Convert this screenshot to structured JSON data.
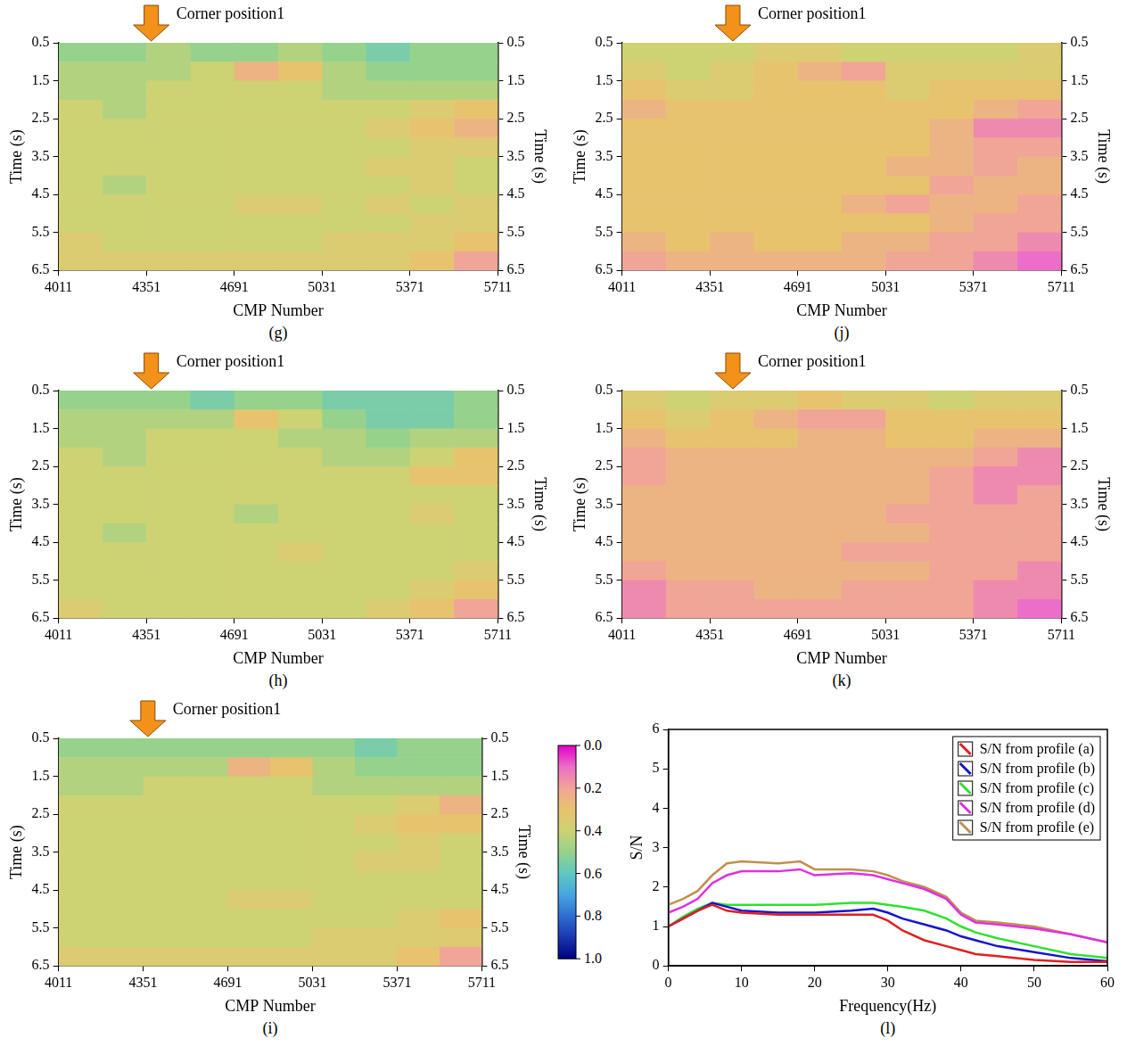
{
  "chart_data": [
    {
      "type": "heatmap",
      "label": "(g)",
      "annotation": {
        "text": "Corner position1",
        "x": 4370
      },
      "x_label": "CMP Number",
      "y_label": "Time (s)",
      "y2_label": "Time (s)",
      "xlim": [
        4011,
        5711
      ],
      "xticks": [
        4011,
        4351,
        4691,
        5031,
        5371,
        5711
      ],
      "ylim": [
        0.5,
        6.5
      ],
      "yticks": [
        0.5,
        1.5,
        2.5,
        3.5,
        4.5,
        5.5,
        6.5
      ],
      "y2lim": [
        0.5,
        6.5
      ],
      "y2ticks": [
        0.5,
        1.5,
        2.5,
        3.5,
        4.5,
        5.5,
        6.5
      ],
      "x_bins": [
        4011,
        4181,
        4351,
        4521,
        4691,
        4861,
        5031,
        5201,
        5371,
        5541,
        5711
      ],
      "y_bins": [
        0.5,
        1,
        1.5,
        2,
        2.5,
        3,
        3.5,
        4,
        4.5,
        5,
        5.5,
        6,
        6.5
      ],
      "cells": [
        [
          0.5,
          0.5,
          0.45,
          0.5,
          0.5,
          0.45,
          0.5,
          0.55,
          0.5,
          0.5
        ],
        [
          0.45,
          0.45,
          0.45,
          0.4,
          0.25,
          0.3,
          0.45,
          0.5,
          0.5,
          0.5
        ],
        [
          0.45,
          0.45,
          0.4,
          0.4,
          0.4,
          0.4,
          0.45,
          0.45,
          0.45,
          0.45
        ],
        [
          0.4,
          0.45,
          0.4,
          0.4,
          0.4,
          0.4,
          0.4,
          0.4,
          0.35,
          0.3
        ],
        [
          0.4,
          0.4,
          0.4,
          0.4,
          0.4,
          0.4,
          0.4,
          0.35,
          0.3,
          0.25
        ],
        [
          0.4,
          0.4,
          0.4,
          0.4,
          0.4,
          0.4,
          0.4,
          0.4,
          0.35,
          0.35
        ],
        [
          0.4,
          0.4,
          0.4,
          0.4,
          0.4,
          0.4,
          0.4,
          0.35,
          0.35,
          0.4
        ],
        [
          0.4,
          0.45,
          0.4,
          0.4,
          0.4,
          0.4,
          0.4,
          0.4,
          0.35,
          0.4
        ],
        [
          0.4,
          0.4,
          0.4,
          0.4,
          0.35,
          0.35,
          0.4,
          0.35,
          0.4,
          0.35
        ],
        [
          0.4,
          0.4,
          0.4,
          0.4,
          0.4,
          0.4,
          0.4,
          0.4,
          0.35,
          0.35
        ],
        [
          0.35,
          0.4,
          0.4,
          0.4,
          0.4,
          0.4,
          0.35,
          0.35,
          0.35,
          0.3
        ],
        [
          0.35,
          0.35,
          0.35,
          0.35,
          0.35,
          0.35,
          0.35,
          0.35,
          0.3,
          0.2
        ]
      ]
    },
    {
      "type": "heatmap",
      "label": "(j)",
      "annotation": {
        "text": "Corner position1",
        "x": 4440
      },
      "x_label": "CMP Number",
      "y_label": "Time (s)",
      "y2_label": "Time (s)",
      "xlim": [
        4011,
        5711
      ],
      "xticks": [
        4011,
        4351,
        4691,
        5031,
        5371,
        5711
      ],
      "ylim": [
        0.5,
        6.5
      ],
      "yticks": [
        0.5,
        1.5,
        2.5,
        3.5,
        4.5,
        5.5,
        6.5
      ],
      "y2lim": [
        0.5,
        6.5
      ],
      "y2ticks": [
        0.5,
        1.5,
        2.5,
        3.5,
        4.5,
        5.5,
        6.5
      ],
      "x_bins": [
        4011,
        4181,
        4351,
        4521,
        4691,
        4861,
        5031,
        5201,
        5371,
        5541,
        5711
      ],
      "y_bins": [
        0.5,
        1,
        1.5,
        2,
        2.5,
        3,
        3.5,
        4,
        4.5,
        5,
        5.5,
        6,
        6.5
      ],
      "cells": [
        [
          0.4,
          0.4,
          0.4,
          0.35,
          0.35,
          0.4,
          0.4,
          0.4,
          0.4,
          0.35
        ],
        [
          0.35,
          0.4,
          0.35,
          0.3,
          0.25,
          0.2,
          0.35,
          0.35,
          0.35,
          0.35
        ],
        [
          0.3,
          0.35,
          0.35,
          0.3,
          0.3,
          0.3,
          0.35,
          0.3,
          0.3,
          0.3
        ],
        [
          0.25,
          0.3,
          0.3,
          0.3,
          0.3,
          0.3,
          0.3,
          0.3,
          0.25,
          0.2
        ],
        [
          0.3,
          0.3,
          0.3,
          0.3,
          0.3,
          0.3,
          0.3,
          0.25,
          0.15,
          0.15
        ],
        [
          0.3,
          0.3,
          0.3,
          0.3,
          0.3,
          0.3,
          0.3,
          0.25,
          0.2,
          0.2
        ],
        [
          0.3,
          0.3,
          0.3,
          0.3,
          0.3,
          0.3,
          0.25,
          0.25,
          0.2,
          0.25
        ],
        [
          0.3,
          0.3,
          0.3,
          0.3,
          0.3,
          0.3,
          0.3,
          0.2,
          0.25,
          0.25
        ],
        [
          0.3,
          0.3,
          0.3,
          0.3,
          0.3,
          0.25,
          0.2,
          0.25,
          0.25,
          0.2
        ],
        [
          0.3,
          0.3,
          0.3,
          0.3,
          0.3,
          0.3,
          0.3,
          0.25,
          0.2,
          0.2
        ],
        [
          0.25,
          0.3,
          0.25,
          0.3,
          0.3,
          0.25,
          0.25,
          0.2,
          0.2,
          0.15
        ],
        [
          0.2,
          0.25,
          0.25,
          0.25,
          0.25,
          0.25,
          0.2,
          0.2,
          0.15,
          0.1
        ]
      ]
    },
    {
      "type": "heatmap",
      "label": "(h)",
      "annotation": {
        "text": "Corner position1",
        "x": 4370
      },
      "x_label": "CMP Number",
      "y_label": "Time (s)",
      "y2_label": "Time (s)",
      "xlim": [
        4011,
        5711
      ],
      "xticks": [
        4011,
        4351,
        4691,
        5031,
        5371,
        5711
      ],
      "ylim": [
        0.5,
        6.5
      ],
      "yticks": [
        0.5,
        1.5,
        2.5,
        3.5,
        4.5,
        5.5,
        6.5
      ],
      "y2lim": [
        0.5,
        6.5
      ],
      "y2ticks": [
        0.5,
        1.5,
        2.5,
        3.5,
        4.5,
        5.5,
        6.5
      ],
      "x_bins": [
        4011,
        4181,
        4351,
        4521,
        4691,
        4861,
        5031,
        5201,
        5371,
        5541,
        5711
      ],
      "y_bins": [
        0.5,
        1,
        1.5,
        2,
        2.5,
        3,
        3.5,
        4,
        4.5,
        5,
        5.5,
        6,
        6.5
      ],
      "cells": [
        [
          0.5,
          0.5,
          0.5,
          0.55,
          0.5,
          0.5,
          0.55,
          0.55,
          0.55,
          0.5
        ],
        [
          0.45,
          0.45,
          0.45,
          0.45,
          0.3,
          0.4,
          0.5,
          0.55,
          0.55,
          0.5
        ],
        [
          0.45,
          0.45,
          0.4,
          0.4,
          0.4,
          0.45,
          0.45,
          0.5,
          0.45,
          0.45
        ],
        [
          0.4,
          0.45,
          0.4,
          0.4,
          0.4,
          0.4,
          0.45,
          0.45,
          0.4,
          0.3
        ],
        [
          0.4,
          0.4,
          0.4,
          0.4,
          0.4,
          0.4,
          0.4,
          0.4,
          0.3,
          0.3
        ],
        [
          0.4,
          0.4,
          0.4,
          0.4,
          0.4,
          0.4,
          0.4,
          0.4,
          0.4,
          0.4
        ],
        [
          0.4,
          0.4,
          0.4,
          0.4,
          0.45,
          0.4,
          0.4,
          0.4,
          0.35,
          0.4
        ],
        [
          0.4,
          0.45,
          0.4,
          0.4,
          0.4,
          0.4,
          0.4,
          0.4,
          0.4,
          0.4
        ],
        [
          0.4,
          0.4,
          0.4,
          0.4,
          0.4,
          0.35,
          0.4,
          0.4,
          0.4,
          0.4
        ],
        [
          0.4,
          0.4,
          0.4,
          0.4,
          0.4,
          0.4,
          0.4,
          0.4,
          0.4,
          0.35
        ],
        [
          0.4,
          0.4,
          0.4,
          0.4,
          0.4,
          0.4,
          0.4,
          0.4,
          0.35,
          0.3
        ],
        [
          0.35,
          0.4,
          0.4,
          0.4,
          0.4,
          0.4,
          0.4,
          0.35,
          0.3,
          0.2
        ]
      ]
    },
    {
      "type": "heatmap",
      "label": "(k)",
      "annotation": {
        "text": "Corner position1",
        "x": 4440
      },
      "x_label": "CMP Number",
      "y_label": "Time (s)",
      "y2_label": "Time (s)",
      "xlim": [
        4011,
        5711
      ],
      "xticks": [
        4011,
        4351,
        4691,
        5031,
        5371,
        5711
      ],
      "ylim": [
        0.5,
        6.5
      ],
      "yticks": [
        0.5,
        1.5,
        2.5,
        3.5,
        4.5,
        5.5,
        6.5
      ],
      "y2lim": [
        0.5,
        6.5
      ],
      "y2ticks": [
        0.5,
        1.5,
        2.5,
        3.5,
        4.5,
        5.5,
        6.5
      ],
      "x_bins": [
        4011,
        4181,
        4351,
        4521,
        4691,
        4861,
        5031,
        5201,
        5371,
        5541,
        5711
      ],
      "y_bins": [
        0.5,
        1,
        1.5,
        2,
        2.5,
        3,
        3.5,
        4,
        4.5,
        5,
        5.5,
        6,
        6.5
      ],
      "cells": [
        [
          0.35,
          0.4,
          0.35,
          0.35,
          0.3,
          0.35,
          0.35,
          0.4,
          0.35,
          0.35
        ],
        [
          0.3,
          0.35,
          0.3,
          0.25,
          0.2,
          0.2,
          0.3,
          0.3,
          0.3,
          0.3
        ],
        [
          0.25,
          0.3,
          0.3,
          0.3,
          0.25,
          0.25,
          0.3,
          0.3,
          0.25,
          0.25
        ],
        [
          0.2,
          0.25,
          0.25,
          0.25,
          0.25,
          0.25,
          0.25,
          0.25,
          0.2,
          0.15
        ],
        [
          0.2,
          0.25,
          0.25,
          0.25,
          0.25,
          0.25,
          0.25,
          0.2,
          0.15,
          0.15
        ],
        [
          0.25,
          0.25,
          0.25,
          0.25,
          0.25,
          0.25,
          0.25,
          0.2,
          0.15,
          0.2
        ],
        [
          0.25,
          0.25,
          0.25,
          0.25,
          0.25,
          0.25,
          0.2,
          0.2,
          0.2,
          0.2
        ],
        [
          0.25,
          0.25,
          0.25,
          0.25,
          0.25,
          0.25,
          0.25,
          0.2,
          0.2,
          0.2
        ],
        [
          0.25,
          0.25,
          0.25,
          0.25,
          0.25,
          0.2,
          0.2,
          0.2,
          0.2,
          0.2
        ],
        [
          0.2,
          0.25,
          0.25,
          0.25,
          0.25,
          0.25,
          0.25,
          0.2,
          0.2,
          0.15
        ],
        [
          0.15,
          0.2,
          0.2,
          0.25,
          0.25,
          0.2,
          0.2,
          0.2,
          0.15,
          0.15
        ],
        [
          0.15,
          0.2,
          0.2,
          0.2,
          0.2,
          0.2,
          0.2,
          0.2,
          0.15,
          0.1
        ]
      ]
    },
    {
      "type": "heatmap",
      "label": "(i)",
      "annotation": {
        "text": "Corner position1",
        "x": 4370
      },
      "x_label": "CMP Number",
      "y_label": "Time (s)",
      "y2_label": "Time (s)",
      "xlim": [
        4011,
        5711
      ],
      "xticks": [
        4011,
        4351,
        4691,
        5031,
        5371,
        5711
      ],
      "ylim": [
        0.5,
        6.5
      ],
      "yticks": [
        0.5,
        1.5,
        2.5,
        3.5,
        4.5,
        5.5,
        6.5
      ],
      "y2lim": [
        0.5,
        6.5
      ],
      "y2ticks": [
        0.5,
        1.5,
        2.5,
        3.5,
        4.5,
        5.5,
        6.5
      ],
      "x_bins": [
        4011,
        4181,
        4351,
        4521,
        4691,
        4861,
        5031,
        5201,
        5371,
        5541,
        5711
      ],
      "y_bins": [
        0.5,
        1,
        1.5,
        2,
        2.5,
        3,
        3.5,
        4,
        4.5,
        5,
        5.5,
        6,
        6.5
      ],
      "cells": [
        [
          0.5,
          0.5,
          0.5,
          0.5,
          0.5,
          0.5,
          0.5,
          0.55,
          0.5,
          0.5
        ],
        [
          0.45,
          0.45,
          0.45,
          0.45,
          0.25,
          0.3,
          0.45,
          0.5,
          0.5,
          0.5
        ],
        [
          0.45,
          0.45,
          0.4,
          0.4,
          0.4,
          0.4,
          0.45,
          0.45,
          0.45,
          0.45
        ],
        [
          0.4,
          0.4,
          0.4,
          0.4,
          0.4,
          0.4,
          0.4,
          0.4,
          0.35,
          0.25
        ],
        [
          0.4,
          0.4,
          0.4,
          0.4,
          0.4,
          0.4,
          0.4,
          0.35,
          0.3,
          0.3
        ],
        [
          0.4,
          0.4,
          0.4,
          0.4,
          0.4,
          0.4,
          0.4,
          0.4,
          0.35,
          0.4
        ],
        [
          0.4,
          0.4,
          0.4,
          0.4,
          0.4,
          0.4,
          0.4,
          0.35,
          0.35,
          0.4
        ],
        [
          0.4,
          0.4,
          0.4,
          0.4,
          0.4,
          0.4,
          0.4,
          0.4,
          0.4,
          0.4
        ],
        [
          0.4,
          0.4,
          0.4,
          0.4,
          0.35,
          0.35,
          0.4,
          0.4,
          0.4,
          0.4
        ],
        [
          0.4,
          0.4,
          0.4,
          0.4,
          0.4,
          0.4,
          0.4,
          0.4,
          0.35,
          0.3
        ],
        [
          0.4,
          0.4,
          0.4,
          0.4,
          0.4,
          0.4,
          0.35,
          0.35,
          0.35,
          0.35
        ],
        [
          0.35,
          0.35,
          0.35,
          0.35,
          0.35,
          0.35,
          0.35,
          0.35,
          0.3,
          0.2
        ]
      ],
      "colorbar": {
        "range": [
          0,
          1
        ],
        "ticks": [
          {
            "value": 0,
            "label": "0.0"
          },
          {
            "value": 0.2,
            "label": "0.2"
          },
          {
            "value": 0.4,
            "label": "0.4"
          },
          {
            "value": 0.6,
            "label": "0.6"
          },
          {
            "value": 0.8,
            "label": "0.8"
          },
          {
            "value": 1,
            "label": "1.0"
          }
        ]
      }
    },
    {
      "type": "line",
      "label": "(l)",
      "x_label": "Frequency(Hz)",
      "y_label": "S/N",
      "xlim": [
        0,
        60
      ],
      "xticks": [
        0,
        10,
        20,
        30,
        40,
        50,
        60
      ],
      "ylim": [
        0,
        6
      ],
      "yticks": [
        0,
        1,
        2,
        3,
        4,
        5,
        6
      ],
      "legend": "upper right",
      "x": [
        0,
        2,
        4,
        6,
        8,
        10,
        15,
        18,
        20,
        25,
        28,
        30,
        32,
        35,
        38,
        40,
        42,
        45,
        50,
        55,
        60
      ],
      "series": [
        {
          "name": "S/N from profile (a)",
          "color": "#e02020",
          "values": [
            1.0,
            1.2,
            1.4,
            1.55,
            1.4,
            1.35,
            1.3,
            1.3,
            1.3,
            1.3,
            1.3,
            1.15,
            0.9,
            0.65,
            0.5,
            0.4,
            0.3,
            0.25,
            0.15,
            0.1,
            0.1
          ]
        },
        {
          "name": "S/N from profile (b)",
          "color": "#1414d0",
          "values": [
            1.0,
            1.2,
            1.4,
            1.6,
            1.5,
            1.4,
            1.35,
            1.35,
            1.35,
            1.4,
            1.45,
            1.35,
            1.2,
            1.05,
            0.9,
            0.75,
            0.65,
            0.5,
            0.35,
            0.2,
            0.12
          ]
        },
        {
          "name": "S/N from profile (c)",
          "color": "#30e030",
          "values": [
            1.0,
            1.25,
            1.45,
            1.6,
            1.55,
            1.55,
            1.55,
            1.55,
            1.55,
            1.6,
            1.6,
            1.55,
            1.5,
            1.4,
            1.2,
            1.0,
            0.85,
            0.7,
            0.5,
            0.3,
            0.2
          ]
        },
        {
          "name": "S/N from profile (d)",
          "color": "#e030e0",
          "values": [
            1.35,
            1.5,
            1.7,
            2.1,
            2.3,
            2.4,
            2.4,
            2.45,
            2.3,
            2.35,
            2.3,
            2.2,
            2.1,
            1.95,
            1.7,
            1.3,
            1.1,
            1.05,
            0.95,
            0.8,
            0.6
          ]
        },
        {
          "name": "S/N from profile (e)",
          "color": "#c09050",
          "values": [
            1.55,
            1.7,
            1.9,
            2.3,
            2.6,
            2.65,
            2.6,
            2.65,
            2.45,
            2.45,
            2.4,
            2.3,
            2.15,
            2.0,
            1.75,
            1.35,
            1.15,
            1.1,
            1.0,
            0.8,
            0.6
          ]
        }
      ]
    }
  ]
}
